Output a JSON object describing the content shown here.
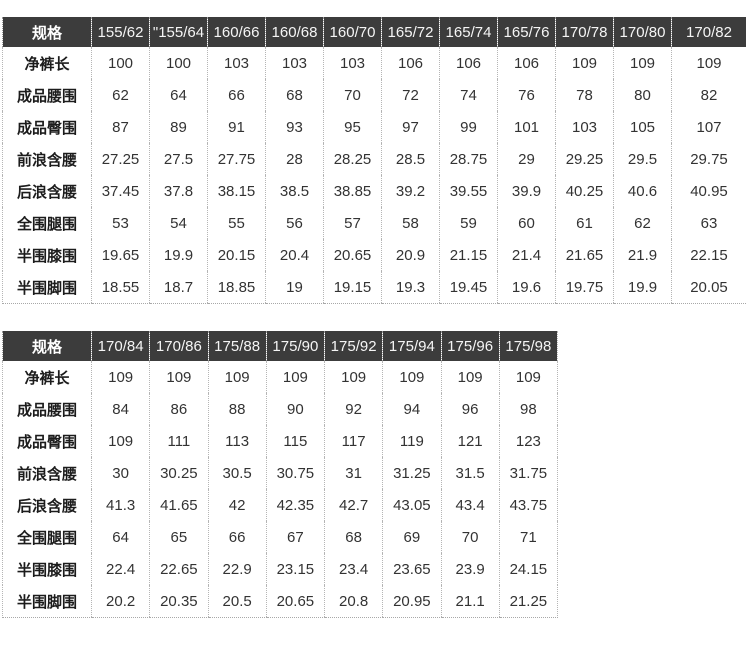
{
  "colors": {
    "header_bg": "#3c3c3c",
    "header_text": "#f5f5f5",
    "body_text": "#333333",
    "label_text": "#1c1c1c",
    "dotted_line": "#b5b5b5",
    "page_bg": "#ffffff"
  },
  "chart_data": [
    {
      "type": "table",
      "title": "",
      "header": [
        "规格",
        "155/62",
        "\"155/64",
        "160/66",
        "160/68",
        "160/70",
        "165/72",
        "165/74",
        "165/76",
        "170/78",
        "170/80",
        "170/82"
      ],
      "rows": [
        [
          "净裤长",
          "100",
          "100",
          "103",
          "103",
          "103",
          "106",
          "106",
          "106",
          "109",
          "109",
          "109"
        ],
        [
          "成品腰围",
          "62",
          "64",
          "66",
          "68",
          "70",
          "72",
          "74",
          "76",
          "78",
          "80",
          "82"
        ],
        [
          "成品臀围",
          "87",
          "89",
          "91",
          "93",
          "95",
          "97",
          "99",
          "101",
          "103",
          "105",
          "107"
        ],
        [
          "前浪含腰",
          "27.25",
          "27.5",
          "27.75",
          "28",
          "28.25",
          "28.5",
          "28.75",
          "29",
          "29.25",
          "29.5",
          "29.75"
        ],
        [
          "后浪含腰",
          "37.45",
          "37.8",
          "38.15",
          "38.5",
          "38.85",
          "39.2",
          "39.55",
          "39.9",
          "40.25",
          "40.6",
          "40.95"
        ],
        [
          "全围腿围",
          "53",
          "54",
          "55",
          "56",
          "57",
          "58",
          "59",
          "60",
          "61",
          "62",
          "63"
        ],
        [
          "半围膝围",
          "19.65",
          "19.9",
          "20.15",
          "20.4",
          "20.65",
          "20.9",
          "21.15",
          "21.4",
          "21.65",
          "21.9",
          "22.15"
        ],
        [
          "半围脚围",
          "18.55",
          "18.7",
          "18.85",
          "19",
          "19.15",
          "19.3",
          "19.45",
          "19.6",
          "19.75",
          "19.9",
          "20.05"
        ]
      ]
    },
    {
      "type": "table",
      "title": "",
      "header": [
        "规格",
        "170/84",
        "170/86",
        "175/88",
        "175/90",
        "175/92",
        "175/94",
        "175/96",
        "175/98"
      ],
      "rows": [
        [
          "净裤长",
          "109",
          "109",
          "109",
          "109",
          "109",
          "109",
          "109",
          "109"
        ],
        [
          "成品腰围",
          "84",
          "86",
          "88",
          "90",
          "92",
          "94",
          "96",
          "98"
        ],
        [
          "成品臀围",
          "109",
          "111",
          "113",
          "115",
          "117",
          "119",
          "121",
          "123"
        ],
        [
          "前浪含腰",
          "30",
          "30.25",
          "30.5",
          "30.75",
          "31",
          "31.25",
          "31.5",
          "31.75"
        ],
        [
          "后浪含腰",
          "41.3",
          "41.65",
          "42",
          "42.35",
          "42.7",
          "43.05",
          "43.4",
          "43.75"
        ],
        [
          "全围腿围",
          "64",
          "65",
          "66",
          "67",
          "68",
          "69",
          "70",
          "71"
        ],
        [
          "半围膝围",
          "22.4",
          "22.65",
          "22.9",
          "23.15",
          "23.4",
          "23.65",
          "23.9",
          "24.15"
        ],
        [
          "半围脚围",
          "20.2",
          "20.35",
          "20.5",
          "20.65",
          "20.8",
          "20.95",
          "21.1",
          "21.25"
        ]
      ]
    }
  ]
}
